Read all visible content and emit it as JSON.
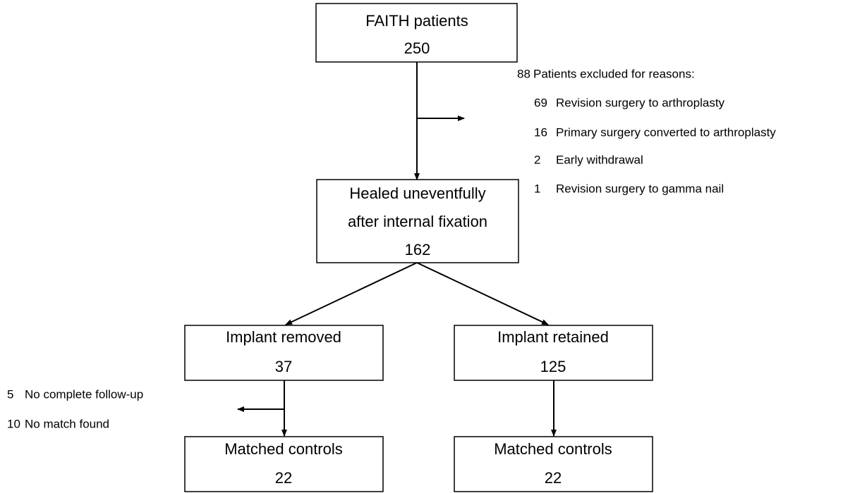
{
  "nodes": [
    {
      "lines": [
        "FAITH patients"
      ],
      "count": 250
    },
    {
      "lines": [
        "Healed uneventfully",
        "after internal fixation"
      ],
      "count": 162
    },
    {
      "lines": [
        "Implant removed"
      ],
      "count": 37
    },
    {
      "lines": [
        "Implant retained"
      ],
      "count": 125
    },
    {
      "lines": [
        "Matched controls"
      ],
      "count": 22
    },
    {
      "lines": [
        "Matched controls"
      ],
      "count": 22
    }
  ],
  "exclusions": [
    {
      "count": 88,
      "text": "Patients excluded for reasons:",
      "items": [
        {
          "count": 69,
          "reason": "Revision surgery to arthroplasty"
        },
        {
          "count": 16,
          "reason": "Primary surgery converted to arthroplasty"
        },
        {
          "count": 2,
          "reason": "Early withdrawal"
        },
        {
          "count": 1,
          "reason": "Revision surgery to gamma nail"
        }
      ]
    },
    {
      "items": [
        {
          "count": 5,
          "reason": "No complete follow-up"
        },
        {
          "count": 10,
          "reason": "No match found"
        }
      ]
    }
  ]
}
